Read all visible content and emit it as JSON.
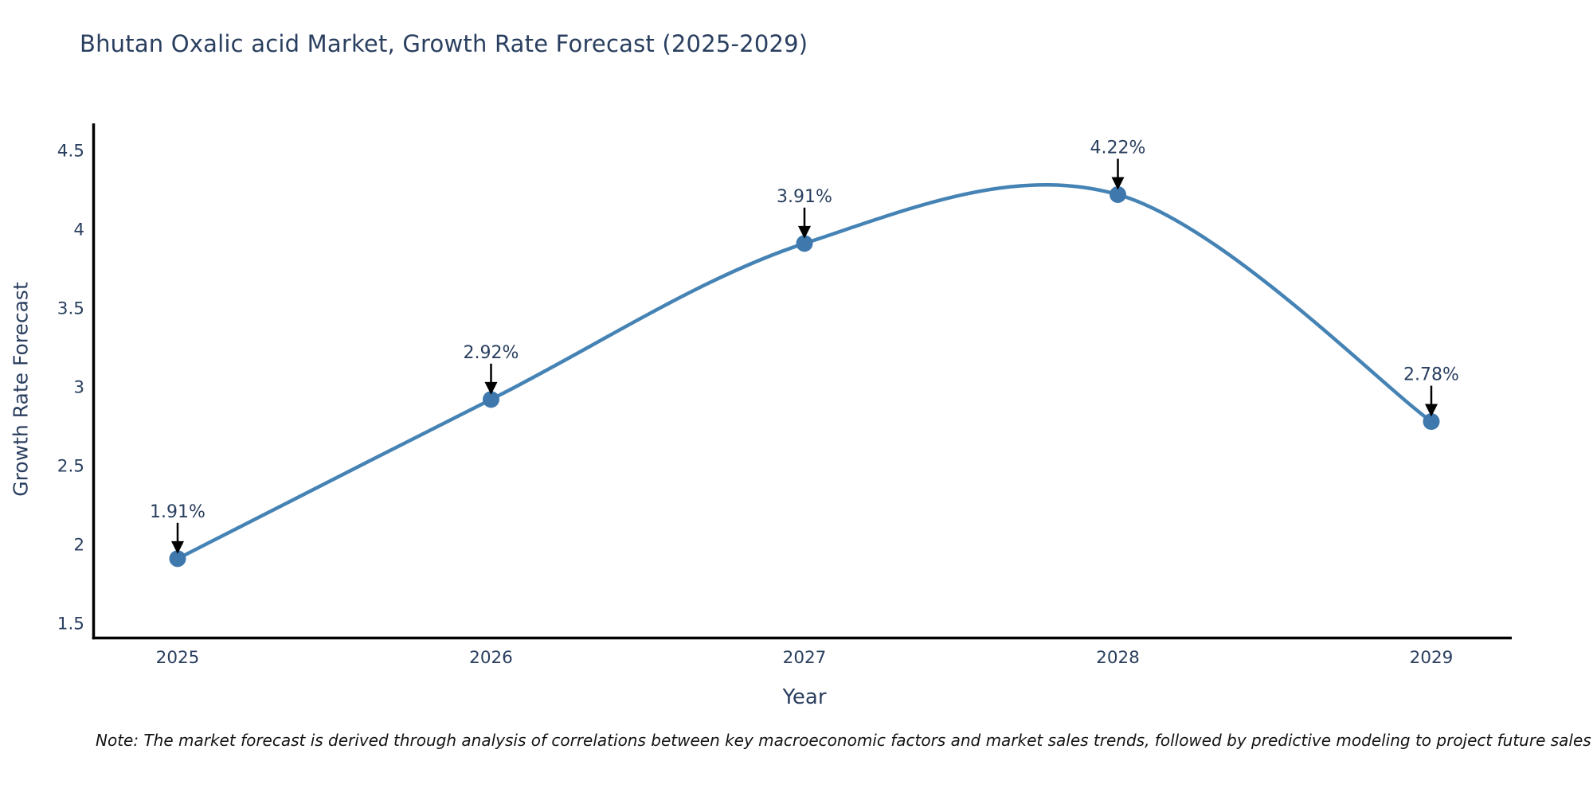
{
  "note": "Note: The market forecast is derived through analysis of correlations between key macroeconomic factors and market sales trends, followed by predictive modeling to project future sales",
  "chart_data": {
    "type": "line",
    "title": "Bhutan Oxalic acid Market, Growth Rate Forecast (2025-2029)",
    "xlabel": "Year",
    "ylabel": "Growth Rate Forecast",
    "x": [
      2025,
      2026,
      2027,
      2028,
      2029
    ],
    "series": [
      {
        "name": "Growth Rate Forecast",
        "values": [
          1.91,
          2.92,
          3.91,
          4.22,
          2.78
        ]
      }
    ],
    "point_labels": [
      "1.91%",
      "2.92%",
      "3.91%",
      "4.22%",
      "2.78%"
    ],
    "yticks": [
      1.5,
      2,
      2.5,
      3,
      3.5,
      4,
      4.5
    ],
    "ylim": [
      1.41,
      4.67
    ],
    "line_shape": "spline",
    "grid": false,
    "legend": "none",
    "colors": {
      "line": "#4583b5",
      "marker": "#3e78ad",
      "axis": "#000000",
      "tick_text": "#2a3f5f",
      "annotation_text": "#2a3f5f",
      "arrow": "#000000",
      "background": "#ffffff"
    }
  }
}
